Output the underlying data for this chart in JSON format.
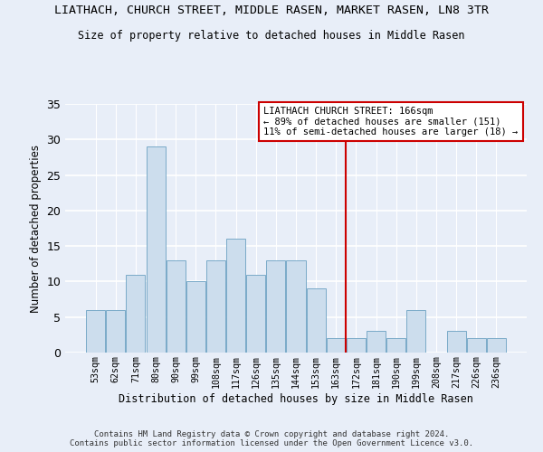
{
  "title": "LIATHACH, CHURCH STREET, MIDDLE RASEN, MARKET RASEN, LN8 3TR",
  "subtitle": "Size of property relative to detached houses in Middle Rasen",
  "xlabel": "Distribution of detached houses by size in Middle Rasen",
  "ylabel": "Number of detached properties",
  "bar_labels": [
    "53sqm",
    "62sqm",
    "71sqm",
    "80sqm",
    "90sqm",
    "99sqm",
    "108sqm",
    "117sqm",
    "126sqm",
    "135sqm",
    "144sqm",
    "153sqm",
    "163sqm",
    "172sqm",
    "181sqm",
    "190sqm",
    "199sqm",
    "208sqm",
    "217sqm",
    "226sqm",
    "236sqm"
  ],
  "bar_values": [
    6,
    6,
    11,
    29,
    13,
    10,
    13,
    16,
    11,
    13,
    13,
    9,
    2,
    2,
    3,
    2,
    6,
    0,
    3,
    2,
    2
  ],
  "bar_color": "#ccdded",
  "bar_edge_color": "#7aaac8",
  "bg_color": "#e8eef8",
  "grid_color": "#ffffff",
  "ylim": [
    0,
    35
  ],
  "yticks": [
    0,
    5,
    10,
    15,
    20,
    25,
    30,
    35
  ],
  "marker_label": "LIATHACH CHURCH STREET: 166sqm",
  "marker_line1": "← 89% of detached houses are smaller (151)",
  "marker_line2": "11% of semi-detached houses are larger (18) →",
  "marker_color": "#cc0000",
  "footer_line1": "Contains HM Land Registry data © Crown copyright and database right 2024.",
  "footer_line2": "Contains public sector information licensed under the Open Government Licence v3.0."
}
